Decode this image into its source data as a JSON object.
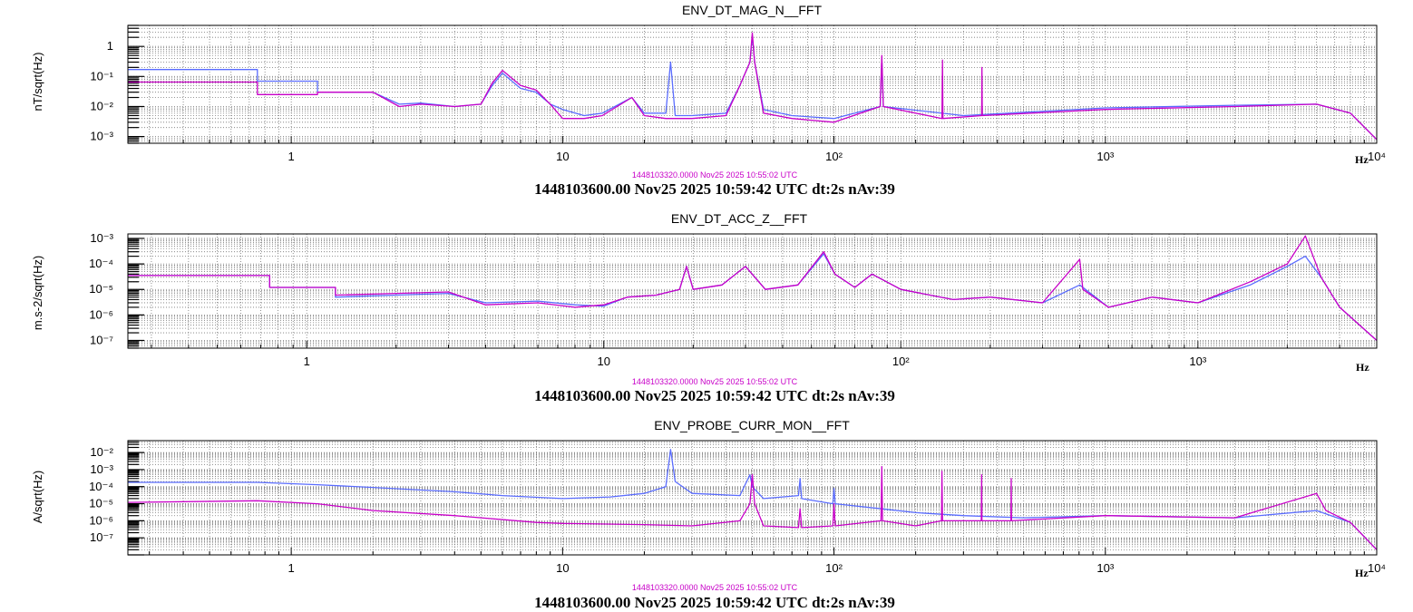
{
  "colors": {
    "reference": "#5a6cff",
    "current": "#c800c8",
    "frame": "#000000"
  },
  "chart_data": [
    {
      "type": "line",
      "title": "ENV_DT_MAG_N__FFT",
      "ylabel": "nT/sqrt(Hz)",
      "x_unit": "Hz",
      "x_scale": "log",
      "y_scale": "log",
      "xlim": [
        0.25,
        10000
      ],
      "ylim": [
        0.0006,
        5
      ],
      "x_ticks": [
        {
          "v": 1,
          "label": "1"
        },
        {
          "v": 10,
          "label": "10"
        },
        {
          "v": 100,
          "label": "10²"
        },
        {
          "v": 1000,
          "label": "10³"
        },
        {
          "v": 10000,
          "label": "10⁴"
        }
      ],
      "y_ticks": [
        {
          "v": 0.001,
          "label": "10⁻³"
        },
        {
          "v": 0.01,
          "label": "10⁻²"
        },
        {
          "v": 0.1,
          "label": "10⁻¹"
        },
        {
          "v": 1,
          "label": "1"
        }
      ],
      "grid": true,
      "reference_stamp": "1448103320.0000 Nov25 2025 10:55:02 UTC",
      "footer": "1448103600.00 Nov25 2025 10:59:42 UTC dt:2s nAv:39",
      "series": [
        {
          "color": "#5a6cff",
          "points": [
            [
              0.25,
              0.17
            ],
            [
              0.75,
              0.17
            ],
            [
              0.75,
              0.07
            ],
            [
              1.25,
              0.07
            ],
            [
              1.25,
              0.03
            ],
            [
              2,
              0.03
            ],
            [
              2.5,
              0.012
            ],
            [
              3,
              0.013
            ],
            [
              4,
              0.01
            ],
            [
              5,
              0.012
            ],
            [
              5.5,
              0.05
            ],
            [
              6,
              0.13
            ],
            [
              7,
              0.04
            ],
            [
              8,
              0.03
            ],
            [
              9,
              0.012
            ],
            [
              10,
              0.008
            ],
            [
              12,
              0.005
            ],
            [
              14,
              0.006
            ],
            [
              18,
              0.02
            ],
            [
              20,
              0.006
            ],
            [
              24,
              0.006
            ],
            [
              25,
              0.3
            ],
            [
              26,
              0.005
            ],
            [
              30,
              0.005
            ],
            [
              40,
              0.006
            ],
            [
              45,
              0.05
            ],
            [
              49,
              0.3
            ],
            [
              50,
              2.2
            ],
            [
              51,
              0.3
            ],
            [
              55,
              0.008
            ],
            [
              70,
              0.005
            ],
            [
              100,
              0.004
            ],
            [
              148,
              0.01
            ],
            [
              150,
              0.4
            ],
            [
              152,
              0.01
            ],
            [
              300,
              0.005
            ],
            [
              1000,
              0.009
            ],
            [
              3000,
              0.011
            ],
            [
              6000,
              0.012
            ],
            [
              8000,
              0.006
            ],
            [
              10000,
              0.0008
            ]
          ]
        },
        {
          "color": "#c800c8",
          "points": [
            [
              0.25,
              0.065
            ],
            [
              0.75,
              0.065
            ],
            [
              0.75,
              0.025
            ],
            [
              1.25,
              0.025
            ],
            [
              1.25,
              0.03
            ],
            [
              2,
              0.03
            ],
            [
              2.5,
              0.01
            ],
            [
              3,
              0.012
            ],
            [
              4,
              0.01
            ],
            [
              5,
              0.012
            ],
            [
              5.5,
              0.06
            ],
            [
              6,
              0.16
            ],
            [
              7,
              0.05
            ],
            [
              8,
              0.035
            ],
            [
              9,
              0.012
            ],
            [
              10,
              0.004
            ],
            [
              12,
              0.004
            ],
            [
              14,
              0.005
            ],
            [
              18,
              0.02
            ],
            [
              20,
              0.005
            ],
            [
              24,
              0.004
            ],
            [
              30,
              0.004
            ],
            [
              40,
              0.005
            ],
            [
              45,
              0.05
            ],
            [
              49,
              0.3
            ],
            [
              50,
              2.8
            ],
            [
              51,
              0.3
            ],
            [
              55,
              0.006
            ],
            [
              70,
              0.004
            ],
            [
              100,
              0.003
            ],
            [
              148,
              0.01
            ],
            [
              150,
              0.5
            ],
            [
              152,
              0.01
            ],
            [
              250,
              0.004
            ],
            [
              251,
              0.35
            ],
            [
              252,
              0.004
            ],
            [
              350,
              0.005
            ],
            [
              351,
              0.2
            ],
            [
              352,
              0.005
            ],
            [
              1000,
              0.008
            ],
            [
              3000,
              0.01
            ],
            [
              6000,
              0.012
            ],
            [
              8000,
              0.006
            ],
            [
              10000,
              0.0008
            ]
          ]
        }
      ]
    },
    {
      "type": "line",
      "title": "ENV_DT_ACC_Z__FFT",
      "ylabel": "m.s-2/sqrt(Hz)",
      "x_unit": "Hz",
      "x_scale": "log",
      "y_scale": "log",
      "xlim": [
        0.25,
        4000
      ],
      "ylim": [
        5e-08,
        0.0015
      ],
      "x_ticks": [
        {
          "v": 1,
          "label": "1"
        },
        {
          "v": 10,
          "label": "10"
        },
        {
          "v": 100,
          "label": "10²"
        },
        {
          "v": 1000,
          "label": "10³"
        }
      ],
      "y_ticks": [
        {
          "v": 1e-07,
          "label": "10⁻⁷"
        },
        {
          "v": 1e-06,
          "label": "10⁻⁶"
        },
        {
          "v": 1e-05,
          "label": "10⁻⁵"
        },
        {
          "v": 0.0001,
          "label": "10⁻⁴"
        },
        {
          "v": 0.001,
          "label": "10⁻³"
        }
      ],
      "grid": true,
      "reference_stamp": "1448103320.0000 Nov25 2025 10:55:02 UTC",
      "footer": "1448103600.00 Nov25 2025 10:59:42 UTC dt:2s nAv:39",
      "series": [
        {
          "color": "#5a6cff",
          "points": [
            [
              0.25,
              3.5e-05
            ],
            [
              0.75,
              3.5e-05
            ],
            [
              0.75,
              1.2e-05
            ],
            [
              1.25,
              1.2e-05
            ],
            [
              1.25,
              5e-06
            ],
            [
              2,
              6e-06
            ],
            [
              3,
              7e-06
            ],
            [
              4,
              3e-06
            ],
            [
              6,
              3.5e-06
            ],
            [
              8,
              2.5e-06
            ],
            [
              10,
              2.2e-06
            ],
            [
              12,
              5e-06
            ],
            [
              15,
              6e-06
            ],
            [
              18,
              1e-05
            ],
            [
              19,
              8e-05
            ],
            [
              20,
              1e-05
            ],
            [
              25,
              1.5e-05
            ],
            [
              30,
              8e-05
            ],
            [
              35,
              1e-05
            ],
            [
              45,
              1.5e-05
            ],
            [
              55,
              0.00025
            ],
            [
              60,
              4e-05
            ],
            [
              70,
              1.2e-05
            ],
            [
              80,
              4e-05
            ],
            [
              100,
              1e-05
            ],
            [
              150,
              4e-06
            ],
            [
              200,
              5e-06
            ],
            [
              300,
              3e-06
            ],
            [
              400,
              1.5e-05
            ],
            [
              500,
              2e-06
            ],
            [
              700,
              5e-06
            ],
            [
              1000,
              3e-06
            ],
            [
              1500,
              1.5e-05
            ],
            [
              2000,
              8e-05
            ],
            [
              2300,
              0.0002
            ],
            [
              2600,
              3e-05
            ],
            [
              3000,
              2e-06
            ],
            [
              4000,
              1e-07
            ]
          ]
        },
        {
          "color": "#c800c8",
          "points": [
            [
              0.25,
              3.5e-05
            ],
            [
              0.75,
              3.5e-05
            ],
            [
              0.75,
              1.2e-05
            ],
            [
              1.25,
              1.2e-05
            ],
            [
              1.25,
              6e-06
            ],
            [
              2,
              7e-06
            ],
            [
              3,
              8e-06
            ],
            [
              4,
              2.5e-06
            ],
            [
              6,
              3e-06
            ],
            [
              8,
              2e-06
            ],
            [
              10,
              2.5e-06
            ],
            [
              12,
              5e-06
            ],
            [
              15,
              6e-06
            ],
            [
              18,
              1e-05
            ],
            [
              19,
              8e-05
            ],
            [
              20,
              1e-05
            ],
            [
              25,
              1.5e-05
            ],
            [
              30,
              8e-05
            ],
            [
              35,
              1e-05
            ],
            [
              45,
              1.5e-05
            ],
            [
              55,
              0.0003
            ],
            [
              60,
              4e-05
            ],
            [
              70,
              1.2e-05
            ],
            [
              80,
              4e-05
            ],
            [
              100,
              1e-05
            ],
            [
              150,
              4e-06
            ],
            [
              200,
              5e-06
            ],
            [
              300,
              3e-06
            ],
            [
              400,
              0.00015
            ],
            [
              410,
              1e-05
            ],
            [
              500,
              2e-06
            ],
            [
              700,
              5e-06
            ],
            [
              1000,
              3e-06
            ],
            [
              1500,
              2e-05
            ],
            [
              2000,
              0.0001
            ],
            [
              2300,
              0.00125
            ],
            [
              2600,
              3e-05
            ],
            [
              3000,
              2e-06
            ],
            [
              4000,
              1e-07
            ]
          ]
        }
      ]
    },
    {
      "type": "line",
      "title": "ENV_PROBE_CURR_MON__FFT",
      "ylabel": "A/sqrt(Hz)",
      "x_unit": "Hz",
      "x_scale": "log",
      "y_scale": "log",
      "xlim": [
        0.25,
        10000
      ],
      "ylim": [
        1e-08,
        0.05
      ],
      "x_ticks": [
        {
          "v": 1,
          "label": "1"
        },
        {
          "v": 10,
          "label": "10"
        },
        {
          "v": 100,
          "label": "10²"
        },
        {
          "v": 1000,
          "label": "10³"
        },
        {
          "v": 10000,
          "label": "10⁴"
        }
      ],
      "y_ticks": [
        {
          "v": 1e-07,
          "label": "10⁻⁷"
        },
        {
          "v": 1e-06,
          "label": "10⁻⁶"
        },
        {
          "v": 1e-05,
          "label": "10⁻⁵"
        },
        {
          "v": 0.0001,
          "label": "10⁻⁴"
        },
        {
          "v": 0.001,
          "label": "10⁻³"
        },
        {
          "v": 0.01,
          "label": "10⁻²"
        }
      ],
      "grid": true,
      "reference_stamp": "1448103320.0000 Nov25 2025 10:55:02 UTC",
      "footer": "1448103600.00 Nov25 2025 10:59:42 UTC dt:2s nAv:39",
      "series": [
        {
          "color": "#5a6cff",
          "points": [
            [
              0.25,
              0.00018
            ],
            [
              0.75,
              0.00018
            ],
            [
              1.25,
              0.00013
            ],
            [
              2,
              9e-05
            ],
            [
              4,
              5e-05
            ],
            [
              6,
              3e-05
            ],
            [
              10,
              2e-05
            ],
            [
              15,
              2.5e-05
            ],
            [
              20,
              4e-05
            ],
            [
              24,
              0.0001
            ],
            [
              25,
              0.015
            ],
            [
              26,
              0.0002
            ],
            [
              30,
              4e-05
            ],
            [
              45,
              3e-05
            ],
            [
              49,
              0.0005
            ],
            [
              50,
              0.0001
            ],
            [
              55,
              2e-05
            ],
            [
              74,
              3e-05
            ],
            [
              75,
              0.0003
            ],
            [
              76,
              2e-05
            ],
            [
              99,
              1e-05
            ],
            [
              100,
              8e-05
            ],
            [
              101,
              1e-05
            ],
            [
              150,
              5e-06
            ],
            [
              200,
              3e-06
            ],
            [
              300,
              2e-06
            ],
            [
              500,
              1.5e-06
            ],
            [
              1000,
              2e-06
            ],
            [
              3000,
              1.5e-06
            ],
            [
              6000,
              4e-06
            ],
            [
              8000,
              8e-07
            ],
            [
              10000,
              2e-08
            ]
          ]
        },
        {
          "color": "#c800c8",
          "points": [
            [
              0.25,
              1.2e-05
            ],
            [
              0.75,
              1.5e-05
            ],
            [
              1.25,
              1e-05
            ],
            [
              2,
              4e-06
            ],
            [
              4,
              2e-06
            ],
            [
              8,
              8e-07
            ],
            [
              10,
              7e-07
            ],
            [
              20,
              6e-07
            ],
            [
              30,
              5e-07
            ],
            [
              45,
              1e-06
            ],
            [
              49,
              1e-05
            ],
            [
              50,
              0.0005
            ],
            [
              51,
              1e-05
            ],
            [
              55,
              5e-07
            ],
            [
              74,
              4e-07
            ],
            [
              75,
              5e-06
            ],
            [
              76,
              4e-07
            ],
            [
              99,
              5e-07
            ],
            [
              100,
              1e-05
            ],
            [
              101,
              5e-07
            ],
            [
              149,
              1e-06
            ],
            [
              150,
              0.0015
            ],
            [
              151,
              1e-06
            ],
            [
              200,
              5e-07
            ],
            [
              249,
              1e-06
            ],
            [
              250,
              0.0008
            ],
            [
              251,
              1e-06
            ],
            [
              349,
              1e-06
            ],
            [
              350,
              0.0005
            ],
            [
              351,
              1e-06
            ],
            [
              449,
              1e-06
            ],
            [
              450,
              0.0003
            ],
            [
              451,
              1e-06
            ],
            [
              1000,
              2e-06
            ],
            [
              3000,
              1.5e-06
            ],
            [
              6000,
              4e-05
            ],
            [
              6500,
              4e-06
            ],
            [
              8000,
              8e-07
            ],
            [
              10000,
              2e-08
            ]
          ]
        }
      ]
    }
  ]
}
